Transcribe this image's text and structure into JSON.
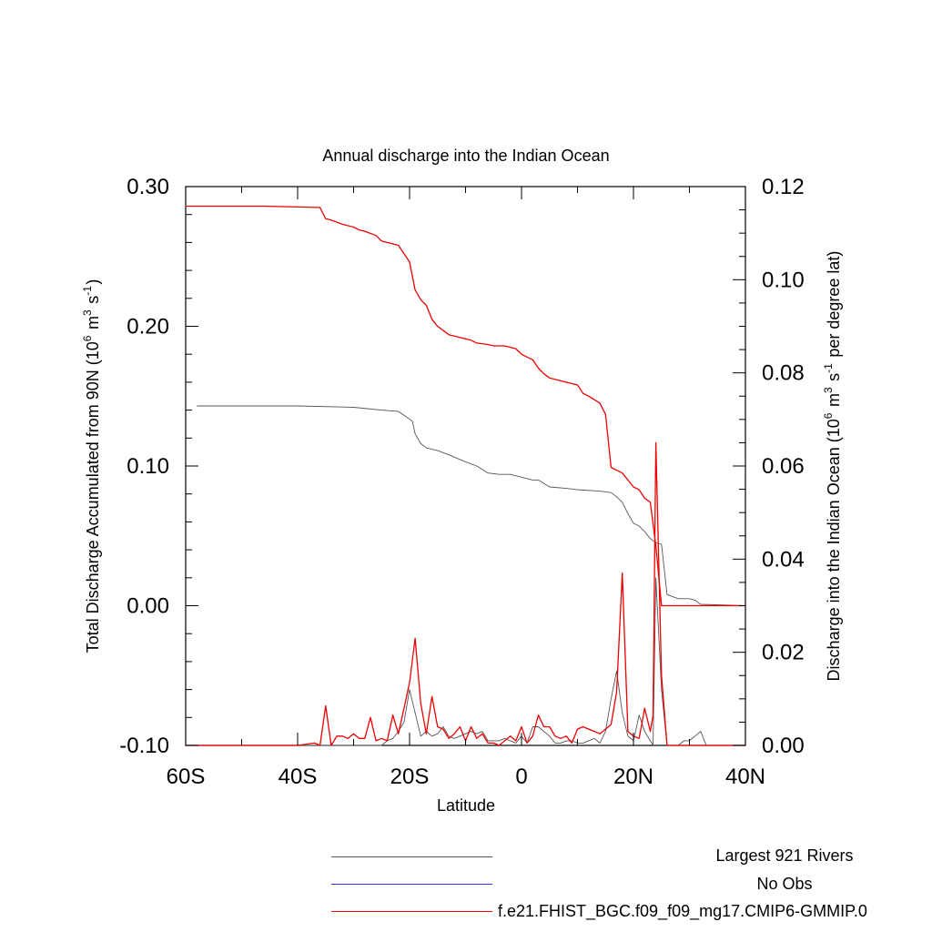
{
  "chart_data": {
    "type": "line",
    "title": "Annual discharge into the Indian Ocean",
    "xlabel": "Latitude",
    "ylabel_left": "Total Discharge Accumulated from 90N (10^6 m^3 s^-1)",
    "ylabel_right": "Discharge into the Indian Ocean (10^6 m^3 s^-1 per degree lat)",
    "xlim": [
      -60,
      40
    ],
    "ylim_left": [
      -0.1,
      0.3
    ],
    "ylim_right": [
      0.0,
      0.12
    ],
    "x_tick_labels": [
      "60S",
      "40S",
      "20S",
      "0",
      "20N",
      "40N"
    ],
    "x_tick_values": [
      -60,
      -40,
      -20,
      0,
      20,
      40
    ],
    "y_left_tick_labels": [
      "-0.10",
      "0.00",
      "0.10",
      "0.20",
      "0.30"
    ],
    "y_left_tick_values": [
      -0.1,
      0.0,
      0.1,
      0.2,
      0.3
    ],
    "y_right_tick_labels": [
      "0.00",
      "0.02",
      "0.04",
      "0.06",
      "0.08",
      "0.10",
      "0.12"
    ],
    "y_right_tick_values": [
      0.0,
      0.02,
      0.04,
      0.06,
      0.08,
      0.1,
      0.12
    ],
    "grid": false,
    "legend_placement": "bottom-right, below plot",
    "series": [
      {
        "name": "Largest 921 Rivers",
        "color": "#555555",
        "axis": "left",
        "x": [
          -58,
          -40,
          -30,
          -25,
          -22,
          -20.5,
          -19.5,
          -19,
          -18,
          -17,
          -15,
          -13,
          -10,
          -8,
          -6,
          -4,
          -2,
          0,
          2,
          3,
          5,
          8,
          10,
          14,
          16,
          17,
          18,
          19,
          20,
          21,
          22,
          23,
          24,
          25,
          26,
          28,
          30,
          31,
          32,
          40
        ],
        "y": [
          0.143,
          0.143,
          0.142,
          0.14,
          0.139,
          0.135,
          0.132,
          0.123,
          0.116,
          0.113,
          0.111,
          0.108,
          0.103,
          0.1,
          0.095,
          0.094,
          0.094,
          0.092,
          0.09,
          0.09,
          0.085,
          0.084,
          0.083,
          0.082,
          0.081,
          0.078,
          0.074,
          0.066,
          0.059,
          0.057,
          0.053,
          0.048,
          0.045,
          0.044,
          0.008,
          0.005,
          0.005,
          0.004,
          0.001,
          0.0
        ]
      },
      {
        "name": "No Obs",
        "color": "#3333ff",
        "axis": "left",
        "x": [],
        "y": []
      },
      {
        "name": "f.e21.FHIST_BGC.f09_f09_mg17.CMIP6-GMMIP.0",
        "color": "#ee0000",
        "axis": "left",
        "x": [
          -60,
          -46,
          -36,
          -35,
          -34,
          -32,
          -30,
          -29,
          -28,
          -26,
          -25,
          -24,
          -22,
          -21,
          -20,
          -19,
          -18,
          -17,
          -16,
          -15,
          -13,
          -12,
          -10,
          -9,
          -8,
          -6,
          -5,
          -3,
          -1,
          0,
          1,
          2,
          3,
          4,
          5,
          7,
          8,
          10,
          11,
          12,
          14,
          15,
          16,
          17,
          18,
          19,
          20,
          21,
          22,
          23,
          24,
          25,
          26,
          30,
          40
        ],
        "y": [
          0.286,
          0.286,
          0.285,
          0.277,
          0.276,
          0.273,
          0.271,
          0.269,
          0.268,
          0.265,
          0.261,
          0.26,
          0.258,
          0.252,
          0.246,
          0.226,
          0.219,
          0.215,
          0.205,
          0.2,
          0.194,
          0.193,
          0.191,
          0.19,
          0.188,
          0.187,
          0.186,
          0.186,
          0.184,
          0.18,
          0.178,
          0.176,
          0.17,
          0.166,
          0.163,
          0.161,
          0.16,
          0.158,
          0.152,
          0.15,
          0.145,
          0.137,
          0.099,
          0.097,
          0.095,
          0.09,
          0.085,
          0.083,
          0.077,
          0.074,
          0.043,
          0.0,
          0.0,
          0.0,
          0.0
        ]
      },
      {
        "name": "Largest 921 Rivers (per degree lat)",
        "color": "#555555",
        "axis": "right",
        "x": [
          -60,
          -25,
          -24,
          -23,
          -22,
          -21,
          -20,
          -19,
          -18,
          -17,
          -16,
          -15,
          -14,
          -13,
          -12,
          -11,
          -10,
          -9,
          -8,
          -7,
          -6,
          -5,
          -4,
          -3,
          -2,
          -1,
          0,
          1,
          2,
          3,
          4,
          5,
          6,
          7,
          8,
          9,
          10,
          11,
          12,
          13,
          14,
          15,
          16,
          17,
          18,
          19,
          20,
          21,
          22,
          23,
          23.5,
          24,
          25,
          26,
          27,
          28,
          29,
          30,
          31,
          32,
          33,
          40
        ],
        "y": [
          0.0,
          0.0,
          0.001,
          0.0015,
          0.003,
          0.005,
          0.012,
          0.007,
          0.002,
          0.003,
          0.002,
          0.0025,
          0.004,
          0.002,
          0.0015,
          0.002,
          0.0025,
          0.003,
          0.0025,
          0.003,
          0.001,
          0.001,
          0.001,
          0.0015,
          0.001,
          0.0005,
          0.002,
          0.0005,
          0.004,
          0.004,
          0.003,
          0.002,
          0.0005,
          0.0005,
          0.001,
          0.001,
          0.0005,
          0.0005,
          0.001,
          0.0015,
          0.0005,
          0.003,
          0.01,
          0.016,
          0.007,
          0.002,
          0.001,
          0.0065,
          0.003,
          0.001,
          0.0,
          0.036,
          0.012,
          0.0,
          0.0,
          0.0,
          0.001,
          0.001,
          0.002,
          0.003,
          0.0,
          0.0
        ]
      },
      {
        "name": "f.e21.FHIST_BGC.f09_f09_mg17.CMIP6-GMMIP.0 (per degree lat)",
        "color": "#ee0000",
        "axis": "right",
        "x": [
          -60,
          -50,
          -40,
          -37,
          -36,
          -35,
          -34,
          -33,
          -32,
          -31,
          -30,
          -29,
          -28,
          -27,
          -26,
          -25,
          -24,
          -23,
          -22,
          -21,
          -20,
          -19,
          -18,
          -17,
          -16,
          -15,
          -14,
          -13,
          -12,
          -11,
          -10,
          -9,
          -8,
          -7,
          -6,
          -5,
          -4,
          -3,
          -2,
          -1,
          0,
          1,
          2,
          3,
          4,
          5,
          6,
          7,
          8,
          9,
          10,
          11,
          12,
          13,
          14,
          15,
          16,
          17,
          18,
          19,
          20,
          21,
          22,
          23,
          23.5,
          24,
          25,
          26,
          40
        ],
        "y": [
          0.0,
          0.0,
          0.0,
          0.0005,
          0.0,
          0.0085,
          0.0,
          0.002,
          0.002,
          0.0015,
          0.0025,
          0.0015,
          0.0015,
          0.006,
          0.001,
          0.0015,
          0.001,
          0.0065,
          0.0025,
          0.008,
          0.0135,
          0.023,
          0.009,
          0.0025,
          0.0105,
          0.004,
          0.0035,
          0.0015,
          0.0025,
          0.004,
          0.001,
          0.004,
          0.0015,
          0.0025,
          0.0005,
          0.0005,
          0.0,
          0.001,
          0.002,
          0.001,
          0.004,
          0.0005,
          0.002,
          0.0065,
          0.004,
          0.004,
          0.002,
          0.0015,
          0.002,
          0.0005,
          0.0035,
          0.004,
          0.0035,
          0.003,
          0.0025,
          0.0035,
          0.0045,
          0.0115,
          0.037,
          0.003,
          0.002,
          0.0015,
          0.008,
          0.003,
          0.0065,
          0.065,
          0.015,
          0.0,
          0.0
        ]
      }
    ]
  },
  "legend": {
    "items": [
      {
        "label": "Largest 921 Rivers",
        "color": "#555555"
      },
      {
        "label": "No Obs",
        "color": "#3333ff"
      },
      {
        "label": "f.e21.FHIST_BGC.f09_f09_mg17.CMIP6-GMMIP.0",
        "color": "#ee0000"
      }
    ]
  }
}
